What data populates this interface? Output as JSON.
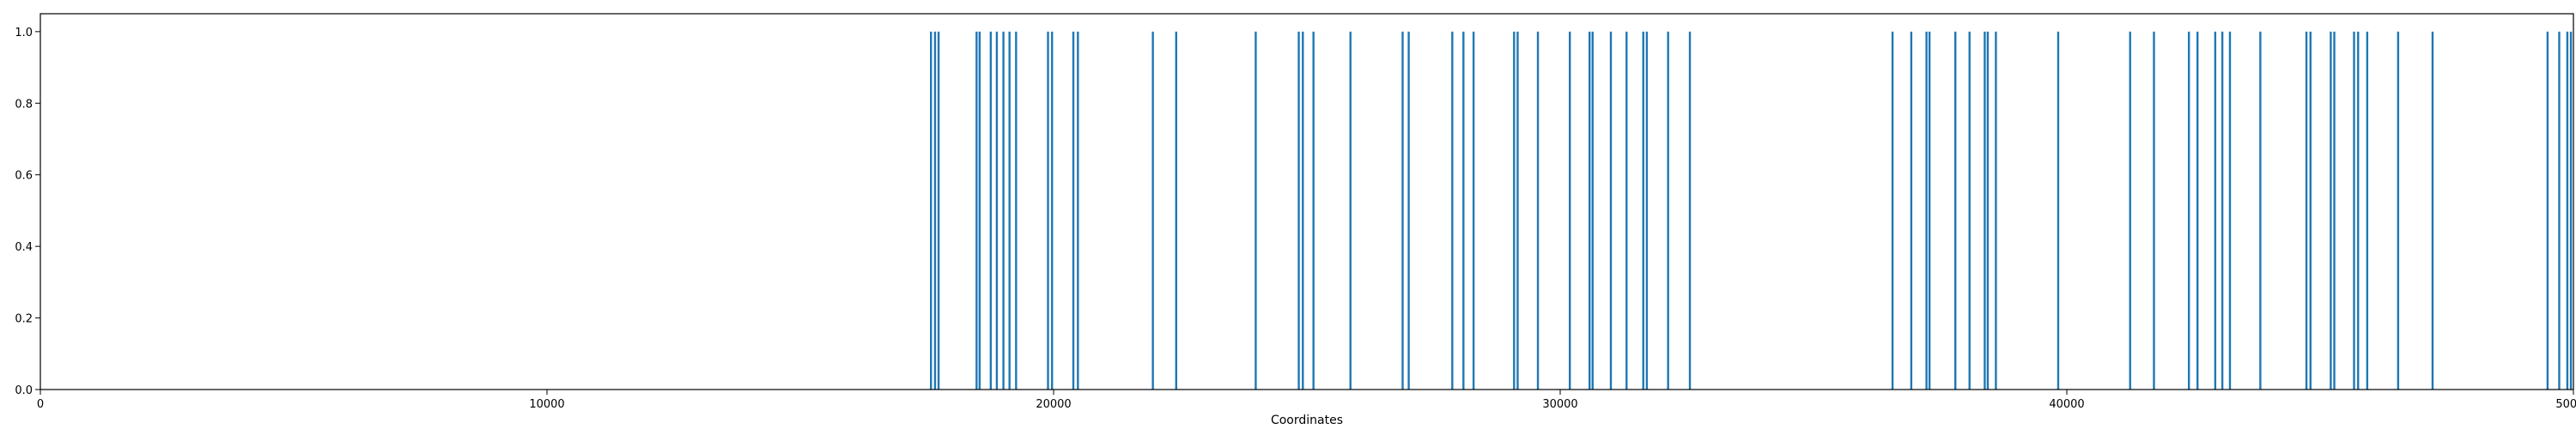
{
  "chart_data": {
    "type": "bar",
    "title": "",
    "xlabel": "Coordinates",
    "ylabel": "",
    "xlim": [
      0,
      50000
    ],
    "ylim": [
      0,
      1.05
    ],
    "x_ticks": [
      0,
      10000,
      20000,
      30000,
      40000,
      50000
    ],
    "y_ticks": [
      0.0,
      0.2,
      0.4,
      0.6,
      0.8,
      1.0
    ],
    "x_tick_labels": [
      "0",
      "10000",
      "20000",
      "30000",
      "40000",
      "50000"
    ],
    "y_tick_labels": [
      "0.0",
      "0.2",
      "0.4",
      "0.6",
      "0.8",
      "1.0"
    ],
    "grid": false,
    "bar_color": "#1f77b4",
    "series": [
      {
        "x": [
          17580,
          17660,
          17730,
          18480,
          18540,
          18760,
          18880,
          19010,
          19130,
          19260,
          19890,
          19970,
          20390,
          20480,
          21960,
          22420,
          23990,
          24840,
          24920,
          25130,
          25860,
          26890,
          27010,
          27870,
          28090,
          28290,
          29090,
          29160,
          29560,
          30190,
          30580,
          30640,
          31000,
          31310,
          31640,
          31710,
          32130,
          32560,
          36560,
          36930,
          37230,
          37290,
          37800,
          38080,
          38380,
          38440,
          38600,
          39830,
          41250,
          41720,
          42410,
          42580,
          42930,
          43070,
          43220,
          43820,
          44730,
          44810,
          45210,
          45280,
          45670,
          45750,
          45930,
          46540,
          47220,
          49490,
          49720,
          49880,
          49950
        ],
        "values": [
          1,
          1,
          1,
          1,
          1,
          1,
          1,
          1,
          1,
          1,
          1,
          1,
          1,
          1,
          1,
          1,
          1,
          1,
          1,
          1,
          1,
          1,
          1,
          1,
          1,
          1,
          1,
          1,
          1,
          1,
          1,
          1,
          1,
          1,
          1,
          1,
          1,
          1,
          1,
          1,
          1,
          1,
          1,
          1,
          1,
          1,
          1,
          1,
          1,
          1,
          1,
          1,
          1,
          1,
          1,
          1,
          1,
          1,
          1,
          1,
          1,
          1,
          1,
          1,
          1,
          1,
          1,
          1,
          1
        ]
      }
    ]
  }
}
